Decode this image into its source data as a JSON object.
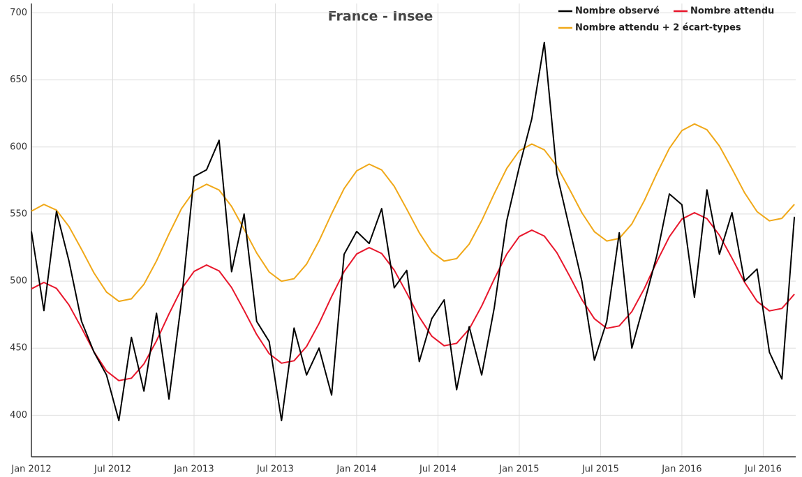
{
  "chart_data": {
    "type": "line",
    "title": "France - Insee",
    "x": [
      2012,
      2012.077,
      2012.154,
      2012.231,
      2012.308,
      2012.385,
      2012.462,
      2012.538,
      2012.615,
      2012.692,
      2012.769,
      2012.846,
      2012.923,
      2013,
      2013.077,
      2013.154,
      2013.231,
      2013.308,
      2013.385,
      2013.462,
      2013.538,
      2013.615,
      2013.692,
      2013.769,
      2013.846,
      2013.923,
      2014,
      2014.077,
      2014.154,
      2014.231,
      2014.308,
      2014.385,
      2014.462,
      2014.538,
      2014.615,
      2014.692,
      2014.769,
      2014.846,
      2014.923,
      2015,
      2015.077,
      2015.154,
      2015.231,
      2015.308,
      2015.385,
      2015.462,
      2015.538,
      2015.615,
      2015.692,
      2015.769,
      2015.846,
      2015.923,
      2016,
      2016.077,
      2016.154,
      2016.231,
      2016.308,
      2016.385,
      2016.462,
      2016.538,
      2016.615,
      2016.692
    ],
    "series": [
      {
        "name": "Nombre observé",
        "color": "#000000",
        "values": [
          537,
          478,
          552,
          515,
          470,
          447,
          430,
          396,
          458,
          418,
          476,
          412,
          485,
          578,
          583,
          605,
          507,
          550,
          470,
          455,
          396,
          465,
          430,
          450,
          415,
          520,
          537,
          528,
          554,
          495,
          508,
          440,
          472,
          486,
          419,
          466,
          430,
          480,
          545,
          585,
          621,
          678,
          580,
          540,
          500,
          441,
          470,
          536,
          450,
          484,
          519,
          565,
          557,
          488,
          568,
          520,
          551,
          500,
          509,
          447,
          427,
          548
        ]
      },
      {
        "name": "Nombre attendu",
        "color": "#e8162b",
        "values": [
          494.2,
          499.0,
          494.6,
          482.2,
          465.1,
          447.2,
          432.9,
          425.8,
          427.6,
          438.2,
          455.4,
          475.5,
          494.1,
          507.2,
          512.0,
          507.6,
          495.2,
          478.1,
          460.2,
          445.9,
          438.8,
          440.6,
          451.2,
          468.4,
          488.5,
          507.1,
          520.2,
          525.0,
          520.6,
          508.2,
          491.1,
          473.2,
          458.9,
          451.8,
          453.6,
          464.2,
          481.4,
          501.5,
          520.1,
          533.2,
          538.0,
          533.6,
          521.2,
          504.1,
          486.2,
          471.9,
          464.8,
          466.6,
          477.2,
          494.4,
          514.5,
          533.1,
          546.2,
          551.0,
          546.6,
          534.2,
          517.1,
          499.2,
          484.9,
          477.8,
          479.6,
          490.2
        ]
      },
      {
        "name": "Nombre attendu + 2 écart-types",
        "color": "#f0a818",
        "values": [
          552.2,
          557.2,
          552.9,
          540.7,
          523.7,
          506.0,
          491.8,
          484.9,
          486.8,
          497.6,
          515.0,
          535.2,
          554.0,
          567.2,
          572.2,
          567.9,
          555.7,
          538.7,
          521.0,
          506.8,
          499.9,
          501.8,
          512.6,
          530.0,
          550.2,
          569.0,
          582.2,
          587.2,
          582.9,
          570.7,
          553.7,
          536.0,
          521.8,
          514.9,
          516.8,
          527.6,
          545.0,
          565.2,
          584.0,
          597.2,
          602.2,
          597.9,
          585.7,
          568.7,
          551.0,
          536.8,
          529.9,
          531.8,
          542.6,
          560.0,
          580.2,
          599.0,
          612.2,
          617.2,
          612.9,
          600.7,
          583.7,
          566.0,
          551.8,
          544.9,
          546.8,
          557.2
        ]
      }
    ],
    "xlim": [
      2012,
      2016.7
    ],
    "xticks": [
      {
        "value": 2012,
        "label": "Jan 2012"
      },
      {
        "value": 2012.5,
        "label": "Jul 2012"
      },
      {
        "value": 2013,
        "label": "Jan 2013"
      },
      {
        "value": 2013.5,
        "label": "Jul 2013"
      },
      {
        "value": 2014,
        "label": "Jan 2014"
      },
      {
        "value": 2014.5,
        "label": "Jul 2014"
      },
      {
        "value": 2015,
        "label": "Jan 2015"
      },
      {
        "value": 2015.5,
        "label": "Jul 2015"
      },
      {
        "value": 2016,
        "label": "Jan 2016"
      },
      {
        "value": 2016.5,
        "label": "Jul 2016"
      }
    ],
    "ylim": [
      369,
      707
    ],
    "yticks": [
      400,
      450,
      500,
      550,
      600,
      650,
      700
    ],
    "grid": true
  }
}
